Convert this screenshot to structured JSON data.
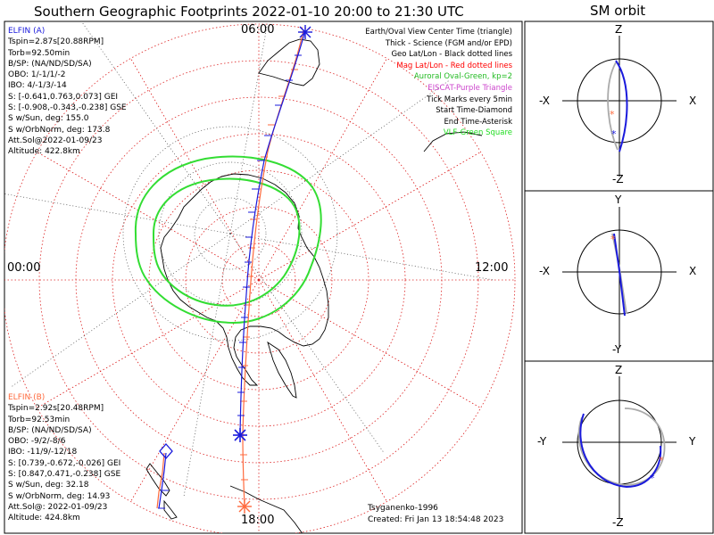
{
  "title": "Southern Geographic Footprints 2022-01-10 20:00 to 21:30 UTC",
  "sm_title": "SM orbit",
  "clock_labels": {
    "top": "06:00",
    "left": "00:00",
    "right": "12:00",
    "bottom": "18:00"
  },
  "elfin_a": {
    "name": "ELFIN (A)",
    "color": "#1a1adc",
    "lines": [
      "Tspin=2.87s[20.88RPM]",
      "Torb=92.50min",
      "B/SP: (NA/ND/SD/SA)",
      "OBO: 1/-1/1/-2",
      "IBO: 4/-1/3/-14",
      "S: [-0.641,0.763,0.073] GEI",
      "S: [-0.908,-0.343,-0.238] GSE",
      "S w/Sun, deg: 155.0",
      "S w/OrbNorm, deg: 173.8",
      "Att.Sol@2022-01-09/23",
      "Altitude: 422.8km"
    ]
  },
  "elfin_b": {
    "name": "ELFIN (B)",
    "color": "#ff6a3d",
    "lines": [
      "Tspin=2.92s[20.48RPM]",
      "Torb=92.53min",
      "B/SP: (NA/ND/SD/SA)",
      "OBO: -9/2/-8/6",
      "IBO: -11/9/-12/18",
      "S: [0.739,-0.672,-0.026] GEI",
      "S: [0.847,0.471,-0.238] GSE",
      "S w/Sun, deg: 32.18",
      "S w/OrbNorm, deg: 14.93",
      "Att.Sol@: 2022-01-09/23",
      "Altitude: 424.8km"
    ]
  },
  "legend": [
    {
      "text": "Earth/Oval View Center Time (triangle)",
      "color": "#000000"
    },
    {
      "text": "Thick - Science (FGM and/or EPD)",
      "color": "#000000"
    },
    {
      "text": "Geo Lat/Lon - Black dotted lines",
      "color": "#000000"
    },
    {
      "text": "Mag Lat/Lon - Red dotted lines",
      "color": "#ff0000"
    },
    {
      "text": "Auroral Oval-Green, kp=2",
      "color": "#22bb22"
    },
    {
      "text": "EISCAT-Purple Triangle",
      "color": "#cc44cc"
    },
    {
      "text": "Tick Marks every 5min",
      "color": "#000000"
    },
    {
      "text": "Start Time-Diamond",
      "color": "#000000"
    },
    {
      "text": "End Time-Asterisk",
      "color": "#000000"
    },
    {
      "text": "VLF-Green Square",
      "color": "#22dd22"
    }
  ],
  "footer": {
    "model": "Tsyganenko-1996",
    "created": "Created: Fri Jan 13 18:54:48 2023"
  },
  "sm_panels": [
    {
      "top": "Z",
      "bottom": "-Z",
      "left": "-X",
      "right": "X"
    },
    {
      "top": "Y",
      "bottom": "-Y",
      "left": "-X",
      "right": "X"
    },
    {
      "top": "Z",
      "bottom": "-Z",
      "left": "-Y",
      "right": "Y"
    }
  ],
  "chart_data": {
    "type": "polar-map",
    "title": "Southern Geographic Footprints 2022-01-10 20:00 to 21:30 UTC",
    "clock_labels": [
      "06:00",
      "12:00",
      "18:00",
      "00:00"
    ],
    "series": [
      {
        "name": "ELFIN (A)",
        "color": "#1a1adc"
      },
      {
        "name": "ELFIN (B)",
        "color": "#ff6a3d"
      }
    ]
  }
}
